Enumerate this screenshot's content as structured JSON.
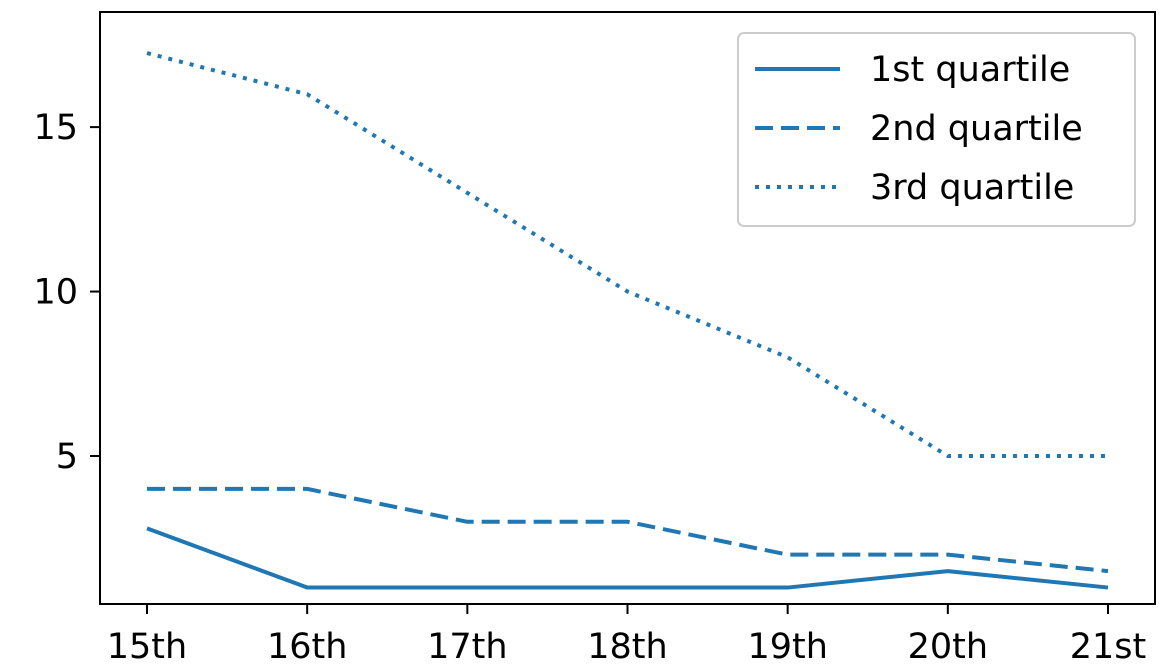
{
  "chart_data": {
    "type": "line",
    "title": "",
    "xlabel": "",
    "ylabel": "",
    "categories": [
      "15th",
      "16th",
      "17th",
      "18th",
      "19th",
      "20th",
      "21st"
    ],
    "ylim": [
      0.5,
      18.5
    ],
    "yticks": [
      5,
      10,
      15
    ],
    "ytick_labels": [
      "5",
      "10",
      "15"
    ],
    "grid": false,
    "legend_position": "top-right",
    "series": [
      {
        "name": "1st quartile",
        "style": "solid",
        "color": "#1f77b4",
        "values": [
          2.8,
          1.0,
          1.0,
          1.0,
          1.0,
          1.5,
          1.0
        ]
      },
      {
        "name": "2nd quartile",
        "style": "dashed",
        "color": "#1f77b4",
        "values": [
          4.0,
          4.0,
          3.0,
          3.0,
          2.0,
          2.0,
          1.5
        ]
      },
      {
        "name": "3rd quartile",
        "style": "dotted",
        "color": "#1f77b4",
        "values": [
          17.25,
          16.0,
          13.0,
          10.0,
          8.0,
          5.0,
          5.0
        ]
      }
    ]
  }
}
